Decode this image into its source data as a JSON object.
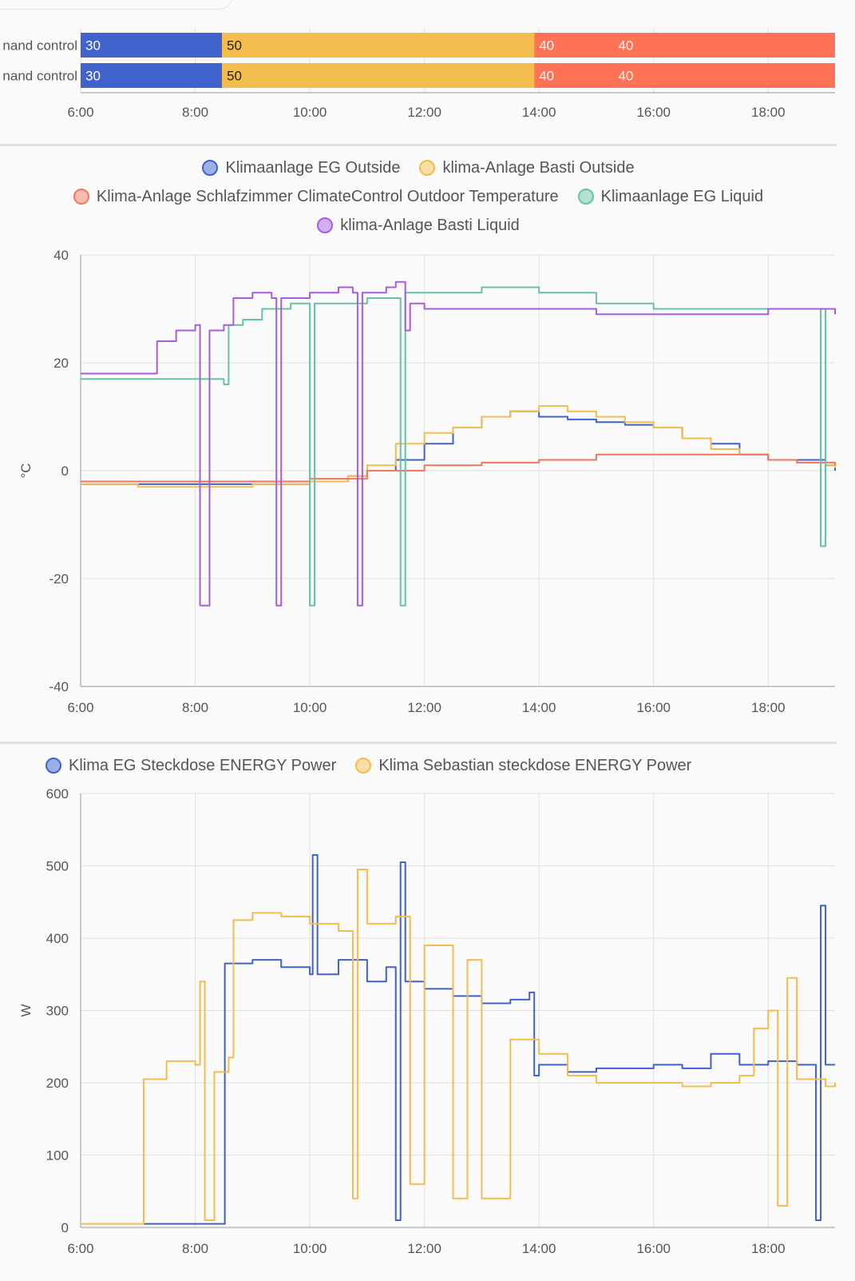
{
  "timeline": {
    "rows": [
      {
        "label": "nand control",
        "segments": [
          {
            "start": "6:00",
            "end": "8:28",
            "value": "30",
            "color": "#3f62cc",
            "text_color": "#ffffff"
          },
          {
            "start": "8:28",
            "end": "13:55",
            "value": "50",
            "color": "#f3bd4d",
            "text_color": "#222222"
          },
          {
            "start": "13:55",
            "end": "15:18",
            "value": "40",
            "color": "#ff7256",
            "text_color": "#ffffff"
          },
          {
            "start": "15:18",
            "end": "19:10",
            "value": "40",
            "color": "#ff7256",
            "text_color": "#ffffff"
          }
        ]
      },
      {
        "label": "nand control",
        "segments": [
          {
            "start": "6:00",
            "end": "8:28",
            "value": "30",
            "color": "#3f62cc",
            "text_color": "#ffffff"
          },
          {
            "start": "8:28",
            "end": "13:55",
            "value": "50",
            "color": "#f3bd4d",
            "text_color": "#222222"
          },
          {
            "start": "13:55",
            "end": "15:18",
            "value": "40",
            "color": "#ff7256",
            "text_color": "#ffffff"
          },
          {
            "start": "15:18",
            "end": "19:10",
            "value": "40",
            "color": "#ff7256",
            "text_color": "#ffffff"
          }
        ]
      }
    ],
    "ticks": [
      "6:00",
      "8:00",
      "10:00",
      "12:00",
      "14:00",
      "16:00",
      "18:00"
    ]
  },
  "chart_data": [
    {
      "type": "line",
      "ylabel": "°C",
      "ylim": [
        -40,
        40
      ],
      "yticks": [
        "40",
        "20",
        "0",
        "-20",
        "-40"
      ],
      "xticks": [
        "6:00",
        "8:00",
        "10:00",
        "12:00",
        "14:00",
        "16:00",
        "18:00"
      ],
      "grid": true,
      "legend_placement": "top",
      "series": [
        {
          "name": "Klimaanlage EG Outside",
          "color": "#3f62cc",
          "points": [
            [
              "6:00",
              -2.5
            ],
            [
              "7:00",
              -2.5
            ],
            [
              "8:00",
              -2.5
            ],
            [
              "9:00",
              -2.5
            ],
            [
              "10:00",
              -2
            ],
            [
              "10:40",
              -1
            ],
            [
              "11:00",
              0
            ],
            [
              "11:30",
              2
            ],
            [
              "12:00",
              5
            ],
            [
              "12:30",
              8
            ],
            [
              "13:00",
              10
            ],
            [
              "13:30",
              11
            ],
            [
              "14:00",
              10
            ],
            [
              "14:30",
              9.5
            ],
            [
              "15:00",
              9
            ],
            [
              "15:30",
              8.5
            ],
            [
              "16:00",
              8
            ],
            [
              "16:30",
              6
            ],
            [
              "17:00",
              5
            ],
            [
              "17:30",
              3
            ],
            [
              "18:00",
              2
            ],
            [
              "18:30",
              2
            ],
            [
              "18:50",
              2
            ],
            [
              "19:00",
              1
            ],
            [
              "19:10",
              0
            ]
          ]
        },
        {
          "name": "klima-Anlage Basti Outside",
          "color": "#f3bd4d",
          "points": [
            [
              "6:00",
              -2.5
            ],
            [
              "7:00",
              -3
            ],
            [
              "8:00",
              -3
            ],
            [
              "9:00",
              -2.5
            ],
            [
              "10:00",
              -2
            ],
            [
              "10:40",
              -1
            ],
            [
              "11:00",
              1
            ],
            [
              "11:30",
              5
            ],
            [
              "12:00",
              7
            ],
            [
              "12:30",
              8
            ],
            [
              "13:00",
              10
            ],
            [
              "13:30",
              11
            ],
            [
              "14:00",
              12
            ],
            [
              "14:30",
              11
            ],
            [
              "15:00",
              10
            ],
            [
              "15:30",
              9
            ],
            [
              "16:00",
              8
            ],
            [
              "16:30",
              6
            ],
            [
              "17:00",
              4
            ],
            [
              "17:30",
              3
            ],
            [
              "18:00",
              2
            ],
            [
              "18:30",
              1.5
            ],
            [
              "19:00",
              1
            ],
            [
              "19:10",
              0.5
            ]
          ]
        },
        {
          "name": "Klima-Anlage Schlafzimmer ClimateControl Outdoor Temperature",
          "color": "#f07662",
          "points": [
            [
              "6:00",
              -2
            ],
            [
              "9:00",
              -2
            ],
            [
              "10:00",
              -1.5
            ],
            [
              "11:00",
              0
            ],
            [
              "12:00",
              1
            ],
            [
              "13:00",
              1.5
            ],
            [
              "14:00",
              2
            ],
            [
              "15:00",
              3
            ],
            [
              "16:00",
              3
            ],
            [
              "17:00",
              3
            ],
            [
              "17:30",
              3
            ],
            [
              "18:00",
              2
            ],
            [
              "18:30",
              1.5
            ],
            [
              "19:10",
              1
            ]
          ]
        },
        {
          "name": "Klimaanlage EG Liquid",
          "color": "#66c2a5",
          "points": [
            [
              "6:00",
              17
            ],
            [
              "8:30",
              16
            ],
            [
              "8:35",
              27
            ],
            [
              "8:50",
              28
            ],
            [
              "9:10",
              30
            ],
            [
              "9:40",
              31
            ],
            [
              "9:55",
              31
            ],
            [
              "10:00",
              -25
            ],
            [
              "10:05",
              31
            ],
            [
              "10:30",
              31
            ],
            [
              "11:00",
              32
            ],
            [
              "11:30",
              32
            ],
            [
              "11:35",
              -25
            ],
            [
              "11:40",
              33
            ],
            [
              "12:00",
              33
            ],
            [
              "13:00",
              34
            ],
            [
              "14:00",
              33
            ],
            [
              "15:00",
              31
            ],
            [
              "16:00",
              30
            ],
            [
              "17:00",
              30
            ],
            [
              "18:00",
              30
            ],
            [
              "18:50",
              30
            ],
            [
              "18:55",
              -14
            ],
            [
              "19:00",
              30
            ],
            [
              "19:10",
              30
            ]
          ]
        },
        {
          "name": "klima-Anlage Basti Liquid",
          "color": "#a85ce0",
          "points": [
            [
              "6:00",
              18
            ],
            [
              "7:00",
              18
            ],
            [
              "7:20",
              24
            ],
            [
              "7:40",
              26
            ],
            [
              "8:00",
              27
            ],
            [
              "8:05",
              -25
            ],
            [
              "8:15",
              26
            ],
            [
              "8:30",
              27
            ],
            [
              "8:40",
              32
            ],
            [
              "9:00",
              33
            ],
            [
              "9:20",
              32
            ],
            [
              "9:25",
              -25
            ],
            [
              "9:30",
              32
            ],
            [
              "10:00",
              33
            ],
            [
              "10:30",
              34
            ],
            [
              "10:45",
              33
            ],
            [
              "10:50",
              -25
            ],
            [
              "10:55",
              33
            ],
            [
              "11:20",
              34
            ],
            [
              "11:30",
              35
            ],
            [
              "11:40",
              26
            ],
            [
              "11:45",
              31
            ],
            [
              "12:00",
              30
            ],
            [
              "13:00",
              30
            ],
            [
              "14:00",
              30
            ],
            [
              "15:00",
              29
            ],
            [
              "16:00",
              29
            ],
            [
              "17:00",
              29
            ],
            [
              "18:00",
              30
            ],
            [
              "18:30",
              30
            ],
            [
              "19:10",
              29
            ]
          ]
        }
      ]
    },
    {
      "type": "line",
      "ylabel": "W",
      "ylim": [
        0,
        600
      ],
      "yticks": [
        "600",
        "500",
        "400",
        "300",
        "200",
        "100",
        "0"
      ],
      "xticks": [
        "6:00",
        "8:00",
        "10:00",
        "12:00",
        "14:00",
        "16:00",
        "18:00"
      ],
      "grid": true,
      "legend_placement": "top",
      "series": [
        {
          "name": "Klima EG Steckdose ENERGY Power",
          "color": "#3f62cc",
          "points": [
            [
              "6:00",
              5
            ],
            [
              "8:30",
              5
            ],
            [
              "8:31",
              365
            ],
            [
              "9:00",
              370
            ],
            [
              "9:30",
              360
            ],
            [
              "10:00",
              350
            ],
            [
              "10:03",
              515
            ],
            [
              "10:08",
              350
            ],
            [
              "10:30",
              370
            ],
            [
              "11:00",
              340
            ],
            [
              "11:20",
              360
            ],
            [
              "11:30",
              10
            ],
            [
              "11:35",
              505
            ],
            [
              "11:40",
              340
            ],
            [
              "12:00",
              330
            ],
            [
              "12:30",
              320
            ],
            [
              "13:00",
              310
            ],
            [
              "13:30",
              315
            ],
            [
              "13:50",
              325
            ],
            [
              "13:55",
              210
            ],
            [
              "14:00",
              225
            ],
            [
              "14:30",
              215
            ],
            [
              "15:00",
              220
            ],
            [
              "16:00",
              225
            ],
            [
              "16:30",
              220
            ],
            [
              "17:00",
              240
            ],
            [
              "17:30",
              225
            ],
            [
              "18:00",
              230
            ],
            [
              "18:30",
              225
            ],
            [
              "18:50",
              10
            ],
            [
              "18:55",
              445
            ],
            [
              "19:00",
              225
            ],
            [
              "19:10",
              225
            ]
          ]
        },
        {
          "name": "Klima Sebastian steckdose ENERGY Power",
          "color": "#f3bd4d",
          "points": [
            [
              "6:00",
              5
            ],
            [
              "7:05",
              5
            ],
            [
              "7:06",
              205
            ],
            [
              "7:30",
              230
            ],
            [
              "8:00",
              225
            ],
            [
              "8:05",
              340
            ],
            [
              "8:10",
              10
            ],
            [
              "8:20",
              215
            ],
            [
              "8:35",
              235
            ],
            [
              "8:40",
              425
            ],
            [
              "9:00",
              435
            ],
            [
              "9:30",
              430
            ],
            [
              "10:00",
              420
            ],
            [
              "10:30",
              410
            ],
            [
              "10:45",
              40
            ],
            [
              "10:50",
              495
            ],
            [
              "11:00",
              420
            ],
            [
              "11:30",
              430
            ],
            [
              "11:45",
              60
            ],
            [
              "12:00",
              390
            ],
            [
              "12:30",
              40
            ],
            [
              "12:45",
              370
            ],
            [
              "13:00",
              40
            ],
            [
              "13:30",
              260
            ],
            [
              "14:00",
              240
            ],
            [
              "14:30",
              210
            ],
            [
              "15:00",
              200
            ],
            [
              "15:30",
              200
            ],
            [
              "16:00",
              200
            ],
            [
              "16:30",
              195
            ],
            [
              "17:00",
              200
            ],
            [
              "17:30",
              210
            ],
            [
              "17:45",
              275
            ],
            [
              "18:00",
              300
            ],
            [
              "18:10",
              30
            ],
            [
              "18:20",
              345
            ],
            [
              "18:30",
              205
            ],
            [
              "19:00",
              195
            ],
            [
              "19:10",
              200
            ]
          ]
        }
      ]
    }
  ]
}
